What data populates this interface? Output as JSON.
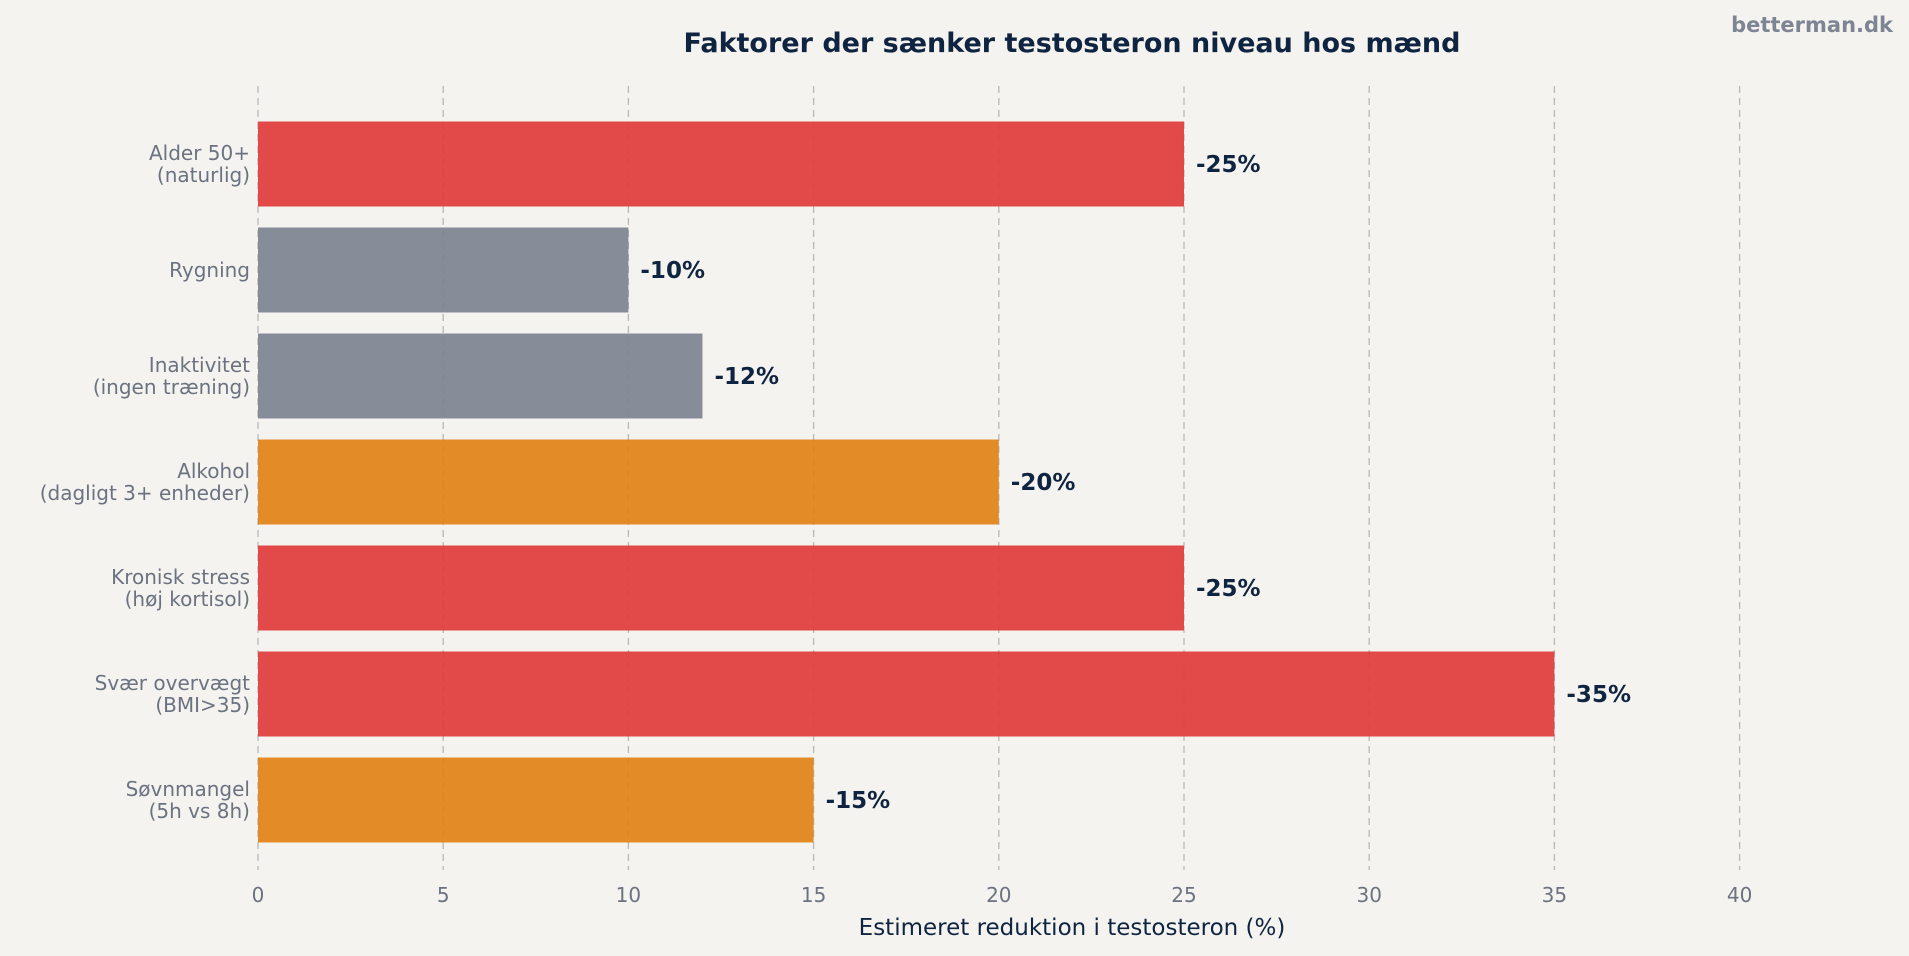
{
  "watermark": "betterman.dk",
  "chart_data": {
    "type": "bar",
    "orientation": "horizontal",
    "title": "Faktorer der sænker testosteron niveau hos mænd",
    "xlabel": "Estimeret reduktion i testosteron (%)",
    "ylabel": "",
    "xlim": [
      0,
      43
    ],
    "xticks": [
      0,
      5,
      10,
      15,
      20,
      25,
      30,
      35,
      40
    ],
    "grid": "x-dashed",
    "categories": [
      [
        "Alder 50+",
        "(naturlig)"
      ],
      [
        "Rygning"
      ],
      [
        "Inaktivitet",
        "(ingen træning)"
      ],
      [
        "Alkohol",
        "(dagligt 3+ enheder)"
      ],
      [
        "Kronisk stress",
        "(høj kortisol)"
      ],
      [
        "Svær overvægt",
        "(BMI>35)"
      ],
      [
        "Søvnmangel",
        "(5h vs 8h)"
      ]
    ],
    "values": [
      25,
      10,
      12,
      20,
      25,
      35,
      15
    ],
    "value_labels": [
      "-25%",
      "-10%",
      "-12%",
      "-20%",
      "-25%",
      "-35%",
      "-15%"
    ],
    "colors": [
      "#e03c3c",
      "#7d8391",
      "#7d8391",
      "#e08216",
      "#e03c3c",
      "#e03c3c",
      "#e08216"
    ]
  }
}
